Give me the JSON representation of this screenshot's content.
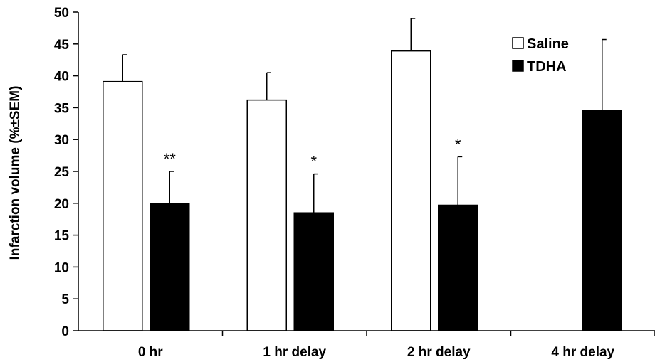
{
  "chart_data": {
    "type": "bar",
    "ylabel": "Infarction volume (%±SEM)",
    "xlabel": "",
    "ylim": [
      0,
      50
    ],
    "yticks": [
      0,
      5,
      10,
      15,
      20,
      25,
      30,
      35,
      40,
      45,
      50
    ],
    "categories": [
      "0 hr",
      "1 hr delay",
      "2 hr delay",
      "4 hr delay"
    ],
    "series": [
      {
        "name": "Saline",
        "color": "#ffffff",
        "values": [
          39.1,
          36.2,
          43.9,
          null
        ],
        "errors": [
          4.2,
          4.3,
          5.1,
          null
        ]
      },
      {
        "name": "TDHA",
        "color": "#000000",
        "values": [
          19.9,
          18.5,
          19.7,
          34.6
        ],
        "errors": [
          5.1,
          6.1,
          7.6,
          11.1
        ]
      }
    ],
    "significance": [
      {
        "category": "0 hr",
        "series": "TDHA",
        "label": "**"
      },
      {
        "category": "1 hr delay",
        "series": "TDHA",
        "label": "*"
      },
      {
        "category": "2 hr delay",
        "series": "TDHA",
        "label": "*"
      }
    ],
    "legend_position": "top-right",
    "grid": false
  }
}
